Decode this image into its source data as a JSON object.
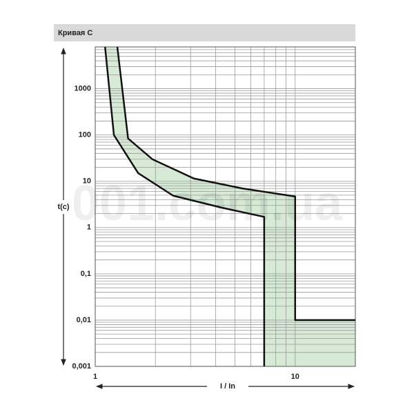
{
  "chart_data": {
    "type": "line",
    "title": "Кривая C",
    "x_label": "I / In",
    "y_label": "t(c)",
    "watermark": "001.com.ua",
    "log_x": true,
    "log_y": true,
    "grid": true,
    "minor_grid": true,
    "band_color": "#d6ead6",
    "xlim": [
      1,
      20
    ],
    "xticks": [
      1,
      10
    ],
    "ylim": [
      0.001,
      8000
    ],
    "yticks": [
      1000,
      100,
      10,
      1,
      {
        "value": 0.1,
        "label": "0,1"
      },
      {
        "value": 0.01,
        "label": "0,01"
      },
      {
        "value": 0.001,
        "label": "0,001"
      }
    ],
    "series": [
      {
        "color": "#111111",
        "x": [
          1.29,
          1.46,
          1.93,
          3.11,
          5.45,
          10,
          10,
          20
        ],
        "values": [
          8000,
          84,
          30,
          11.5,
          7,
          4.7,
          0.01,
          0.01
        ]
      },
      {
        "color": "#111111",
        "x": [
          1.12,
          1.24,
          1.64,
          2.45,
          4.28,
          7,
          7
        ],
        "values": [
          8000,
          100,
          15,
          4.9,
          2.7,
          1.7,
          0.001
        ]
      }
    ]
  }
}
